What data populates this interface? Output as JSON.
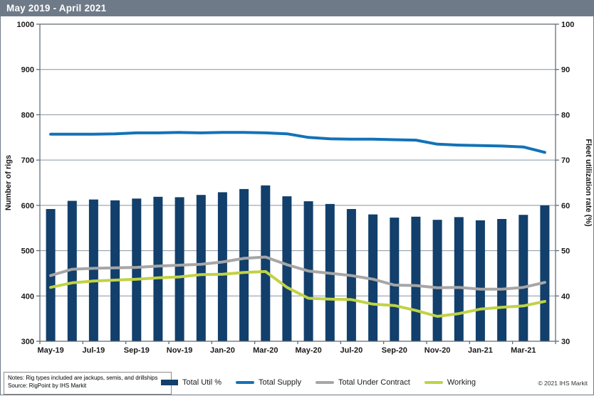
{
  "header": {
    "title": "May 2019 - April 2021"
  },
  "notes": {
    "line1": "Notes: Rig types included are jackups, semis, and drillships",
    "line2": "Source: RigPoint by IHS Markit"
  },
  "copyright": "© 2021  IHS Markit",
  "colors": {
    "header_bg": "#6e7a88",
    "bar": "#123f6b",
    "supply_line": "#1272b8",
    "contract_line": "#a6a6a6",
    "working_line": "#c0d245",
    "gridline": "#8494a3",
    "axis": "#56646f"
  },
  "chart_data": {
    "type": "bar",
    "subtype": "combo-bar-and-lines",
    "title": "May 2019 - April 2021",
    "grid": true,
    "legend_position": "bottom",
    "categories": [
      "May-19",
      "Jun-19",
      "Jul-19",
      "Aug-19",
      "Sep-19",
      "Oct-19",
      "Nov-19",
      "Dec-19",
      "Jan-20",
      "Feb-20",
      "Mar-20",
      "Apr-20",
      "May-20",
      "Jun-20",
      "Jul-20",
      "Aug-20",
      "Sep-20",
      "Oct-20",
      "Nov-20",
      "Dec-20",
      "Jan-21",
      "Feb-21",
      "Mar-21",
      "Apr-21"
    ],
    "x_tick_labels": [
      "May-19",
      "Jul-19",
      "Sep-19",
      "Nov-19",
      "Jan-20",
      "Mar-20",
      "May-20",
      "Jul-20",
      "Sep-20",
      "Nov-20",
      "Jan-21",
      "Mar-21"
    ],
    "left_axis": {
      "label": "Number of rigs",
      "min": 300,
      "max": 1000,
      "step": 100
    },
    "right_axis": {
      "label": "Fleet utilization rate (%)",
      "min": 30,
      "max": 100,
      "step": 10
    },
    "series": [
      {
        "name": "Total Util %",
        "render": "bar",
        "axis": "right",
        "color": "#123f6b",
        "values": [
          59.2,
          61.0,
          61.3,
          61.1,
          61.5,
          61.9,
          61.8,
          62.3,
          62.9,
          63.6,
          64.4,
          62.0,
          60.9,
          60.3,
          59.2,
          58.0,
          57.3,
          57.5,
          56.8,
          57.4,
          56.7,
          57.0,
          57.9,
          60.0
        ]
      },
      {
        "name": "Total Supply",
        "render": "line",
        "axis": "left",
        "color": "#1272b8",
        "values": [
          757,
          757,
          757,
          758,
          760,
          760,
          761,
          760,
          761,
          761,
          760,
          758,
          750,
          747,
          746,
          746,
          745,
          744,
          735,
          733,
          732,
          731,
          729,
          717
        ]
      },
      {
        "name": "Total Under Contract",
        "render": "line",
        "axis": "left",
        "color": "#a6a6a6",
        "values": [
          445,
          459,
          461,
          462,
          463,
          466,
          468,
          470,
          475,
          483,
          486,
          469,
          455,
          450,
          445,
          437,
          424,
          423,
          418,
          419,
          415,
          415,
          419,
          430
        ]
      },
      {
        "name": "Working",
        "render": "line",
        "axis": "left",
        "color": "#c0d245",
        "values": [
          419,
          429,
          433,
          435,
          437,
          440,
          442,
          447,
          448,
          452,
          454,
          419,
          395,
          393,
          392,
          382,
          379,
          368,
          355,
          361,
          371,
          375,
          378,
          388
        ]
      }
    ]
  }
}
